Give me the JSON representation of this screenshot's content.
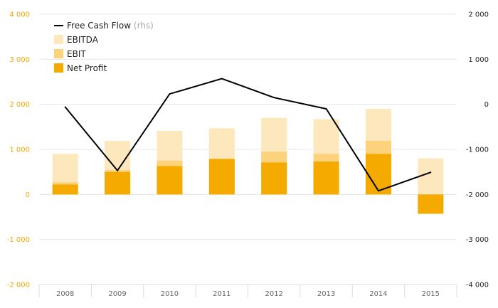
{
  "chart_data": {
    "type": "bar",
    "categories": [
      "2008",
      "2009",
      "2010",
      "2011",
      "2012",
      "2013",
      "2014",
      "2015"
    ],
    "series": [
      {
        "name": "EBITDA",
        "values": [
          900,
          1190,
          1410,
          1470,
          1700,
          1670,
          1900,
          800
        ],
        "color": "#fde8bd"
      },
      {
        "name": "EBIT",
        "values": [
          270,
          540,
          750,
          780,
          950,
          900,
          1190,
          -150
        ],
        "color": "#fcd27c"
      },
      {
        "name": "Net Profit",
        "values": [
          220,
          500,
          630,
          790,
          710,
          730,
          900,
          -430
        ],
        "color": "#f5aa00"
      }
    ],
    "line_series": {
      "name": "Free Cash Flow",
      "name_suffix": "(rhs)",
      "values": [
        -60,
        -1470,
        230,
        570,
        150,
        -100,
        -1920,
        -1510
      ],
      "color": "#000000"
    },
    "ylim": [
      -2000,
      4000
    ],
    "y_ticks": [
      4000,
      3000,
      2000,
      1000,
      0,
      -1000,
      -2000
    ],
    "y_tick_labels": [
      "4 000",
      "3 000",
      "2 000",
      "1 000",
      "0",
      "-1 000",
      "-2 000"
    ],
    "y2lim": [
      -4000,
      2000
    ],
    "y2_ticks": [
      2000,
      1000,
      0,
      -1000,
      -2000,
      -3000,
      -4000
    ],
    "y2_tick_labels": [
      "2 000",
      "1 000",
      "0",
      "-1 000",
      "-2 000",
      "-3 000",
      "-4 000"
    ],
    "grid": true,
    "legend_position": "top-left",
    "left_axis_color": "#f5a800"
  }
}
